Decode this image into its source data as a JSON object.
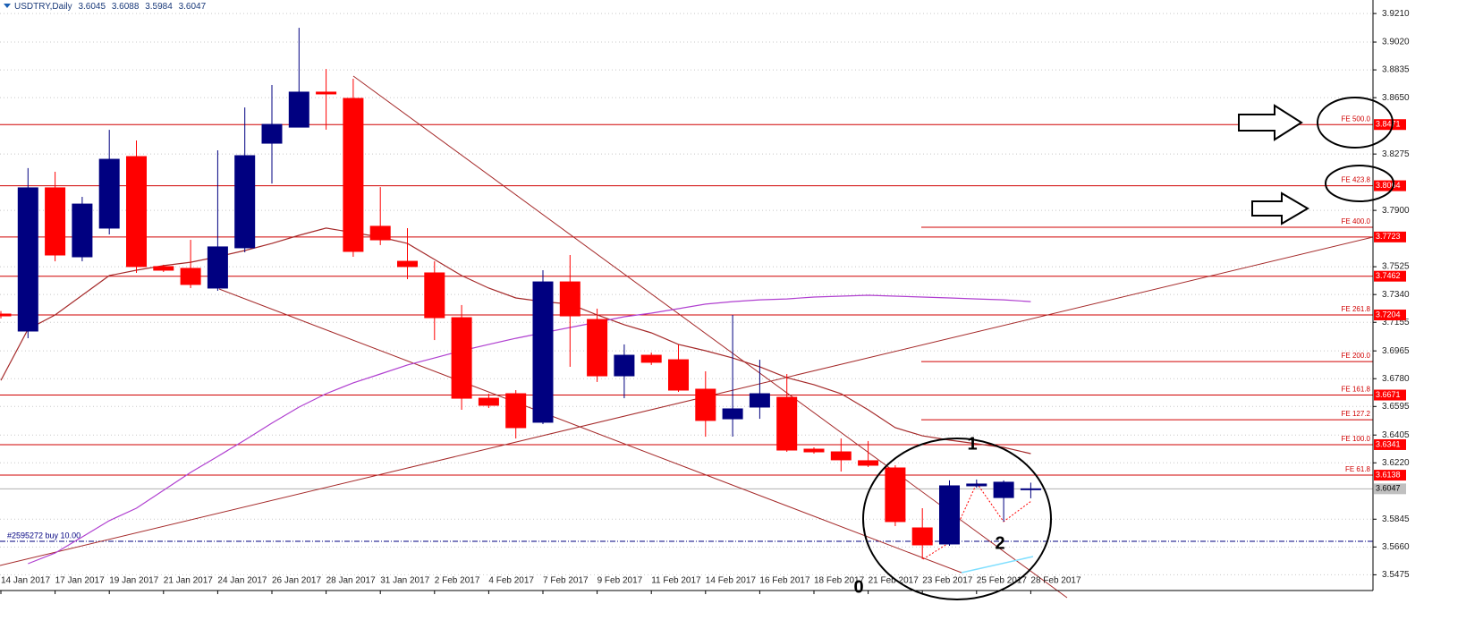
{
  "chart_data": {
    "type": "candlestick",
    "title": "USDTRY,Daily",
    "categories": [
      "14 Jan 2017",
      null,
      "17 Jan 2017",
      null,
      "19 Jan 2017",
      null,
      "21 Jan 2017",
      null,
      "24 Jan 2017",
      null,
      "26 Jan 2017",
      null,
      "28 Jan 2017",
      null,
      "31 Jan 2017",
      null,
      "2 Feb 2017",
      null,
      "4 Feb 2017",
      null,
      "7 Feb 2017",
      null,
      "9 Feb 2017",
      null,
      "11 Feb 2017",
      null,
      "14 Feb 2017",
      null,
      "16 Feb 2017",
      null,
      "18 Feb 2017",
      null,
      "21 Feb 2017",
      null,
      "23 Feb 2017",
      null,
      "25 Feb 2017",
      null,
      "28 Feb 2017"
    ],
    "open": [
      3.721,
      3.7097,
      3.805,
      3.7591,
      3.7782,
      3.8258,
      3.7526,
      3.7514,
      3.7383,
      3.7651,
      3.8347,
      3.8454,
      3.8687,
      3.8645,
      3.7794,
      3.7561,
      3.7484,
      3.7186,
      3.665,
      3.668,
      3.649,
      3.7424,
      3.7174,
      3.6799,
      3.6936,
      3.6906,
      3.671,
      3.6513,
      3.6591,
      3.6656,
      3.6311,
      3.6293,
      3.6234,
      3.6186,
      3.5787,
      3.568,
      3.6067,
      3.5989,
      3.6045
    ],
    "high": [
      3.723,
      3.8181,
      3.8157,
      3.799,
      3.8436,
      3.8365,
      3.7538,
      3.7704,
      3.83,
      3.8585,
      3.8734,
      3.9115,
      3.8841,
      3.8776,
      3.8055,
      3.7782,
      3.7561,
      3.727,
      3.668,
      3.6704,
      3.7502,
      3.7603,
      3.7246,
      3.7008,
      3.6954,
      3.7008,
      3.6829,
      3.7204,
      3.6906,
      3.6811,
      3.6323,
      3.6382,
      3.6365,
      3.6204,
      3.5918,
      3.6103,
      3.6109,
      3.6103,
      3.6088
    ],
    "low": [
      3.718,
      3.7049,
      3.7561,
      3.7561,
      3.774,
      3.7484,
      3.749,
      3.7383,
      3.7365,
      3.7621,
      3.8079,
      3.8454,
      3.8437,
      3.7591,
      3.7669,
      3.7442,
      3.7037,
      3.6573,
      3.6585,
      3.6382,
      3.6478,
      3.6859,
      3.6758,
      3.665,
      3.6871,
      3.6692,
      3.6394,
      3.6394,
      3.6513,
      3.6293,
      3.6281,
      3.6162,
      3.6192,
      3.5799,
      3.5579,
      3.5668,
      3.6055,
      3.5829,
      3.5984
    ],
    "close": [
      3.7198,
      3.805,
      3.7603,
      3.7942,
      3.824,
      3.7526,
      3.7502,
      3.7407,
      3.7657,
      3.8264,
      3.8472,
      3.8687,
      3.8675,
      3.7627,
      3.7704,
      3.7526,
      3.7186,
      3.665,
      3.6603,
      3.6454,
      3.7424,
      3.7198,
      3.6799,
      3.6936,
      3.6889,
      3.6704,
      3.6502,
      3.6579,
      3.668,
      3.6305,
      3.6293,
      3.624,
      3.6204,
      3.5829,
      3.5674,
      3.6067,
      3.6079,
      3.6091,
      3.6047
    ],
    "up_color": "#000080",
    "down_color": "#ff0000",
    "indicators": [
      {
        "color": "#a52a2a",
        "values": [
          3.6769,
          3.7109,
          3.7204,
          3.7335,
          3.7466,
          3.7502,
          3.7532,
          3.7555,
          3.7591,
          3.7633,
          3.768,
          3.7734,
          3.7782,
          3.7752,
          3.7722,
          3.768,
          3.7573,
          3.7466,
          3.7383,
          3.7317,
          3.7293,
          3.7276,
          3.7204,
          3.7139,
          3.7085,
          3.7008,
          3.6966,
          3.6918,
          3.6859,
          3.6787,
          3.674,
          3.668,
          3.6573,
          3.6454,
          3.64,
          3.6371,
          3.6347,
          3.6323,
          3.6281
        ]
      },
      {
        "color": "#b040d0",
        "values": [
          null,
          3.5549,
          3.562,
          3.5727,
          3.5835,
          3.5918,
          3.6037,
          3.6156,
          3.6263,
          3.6371,
          3.6484,
          3.6591,
          3.668,
          3.6752,
          3.6811,
          3.6871,
          3.6918,
          3.6966,
          3.7008,
          3.7049,
          3.7085,
          3.7121,
          3.7156,
          3.7192,
          3.7216,
          3.7246,
          3.7276,
          3.7293,
          3.7305,
          3.7311,
          3.7323,
          3.7329,
          3.7335,
          3.7329,
          3.7323,
          3.7317,
          3.7311,
          3.7305,
          3.7293
        ]
      }
    ],
    "ylim": [
      3.54,
      3.93
    ],
    "yticks": [
      {
        "value": 3.921,
        "label": "3.9210"
      },
      {
        "value": 3.902,
        "label": "3.9020"
      },
      3.8835,
      {
        "value": 3.865,
        "label": "3.8650"
      },
      3.8275,
      {
        "value": 3.79,
        "label": "3.7900"
      },
      3.7525,
      {
        "value": 3.734,
        "label": "3.7340"
      },
      3.7155,
      3.6965,
      {
        "value": 3.678,
        "label": "3.6780"
      },
      3.6595,
      3.6405,
      {
        "value": 3.622,
        "label": "3.6220"
      },
      3.5845,
      {
        "value": 3.566,
        "label": "3.5660"
      },
      3.5475
    ],
    "grid": true,
    "price_levels": [
      {
        "value": 3.8471,
        "name": "FE 500.0"
      },
      {
        "value": 3.8064,
        "name": "FE 423.8"
      },
      {
        "value": 3.7723
      },
      {
        "value": 3.7462
      },
      {
        "value": 3.7204,
        "name": "FE 261.8"
      },
      {
        "value": 3.6671,
        "name": "FE 161.8"
      },
      {
        "value": 3.6341,
        "name": "FE 100.0"
      },
      {
        "value": 3.6138,
        "name": "FE 61.8"
      }
    ],
    "fe_levels": [
      {
        "value": 3.7788,
        "name": "FE 400.0"
      },
      {
        "value": 3.6894,
        "name": "FE 200.0"
      },
      {
        "value": 3.6507,
        "name": "FE 127.2"
      }
    ],
    "order_line": {
      "value": 3.5698,
      "label": "#2595272 buy 10.00"
    },
    "wave_labels": [
      "0",
      "1",
      "2"
    ]
  }
}
